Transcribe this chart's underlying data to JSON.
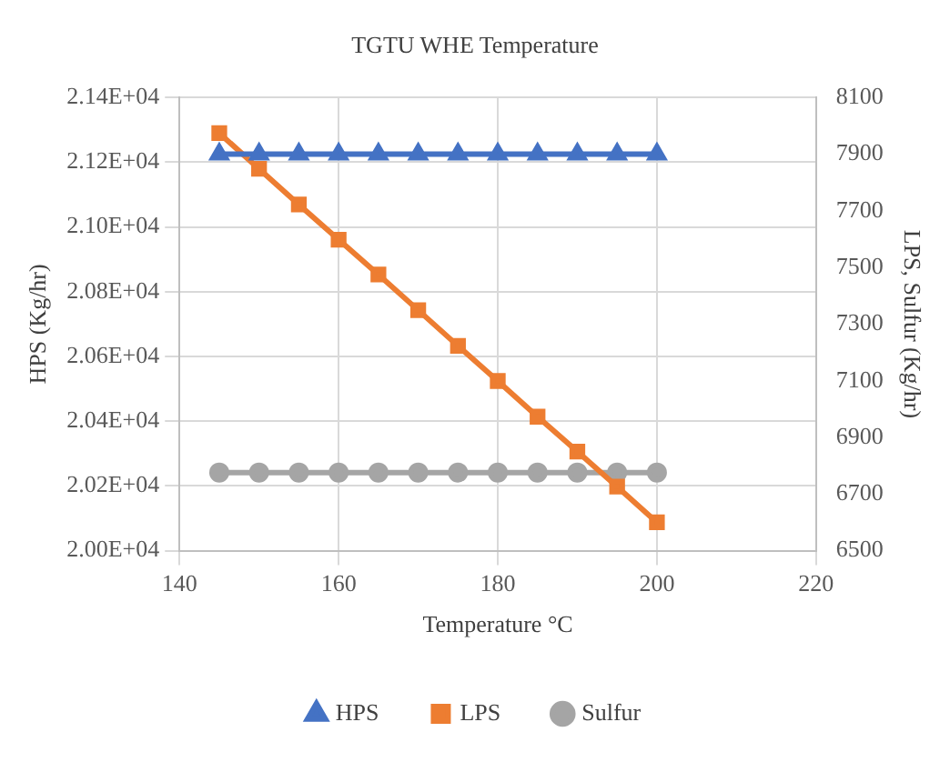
{
  "chart_data": {
    "type": "line",
    "title": "TGTU WHE Temperature",
    "xlabel": "Temperature °C",
    "ylabel": "HPS (Kg/hr)",
    "y2label": "LPS, Sulfur (Kg/hr)",
    "x": [
      145,
      150,
      155,
      160,
      165,
      170,
      175,
      180,
      185,
      190,
      195,
      200
    ],
    "series": [
      {
        "name": "HPS",
        "color": "#4472c4",
        "marker": "triangle",
        "values": [
          21225,
          21225,
          21225,
          21225,
          21225,
          21225,
          21225,
          21225,
          21225,
          21225,
          21225,
          21225
        ]
      },
      {
        "name": "LPS",
        "color": "#ed7d31",
        "marker": "square",
        "axis": "y2",
        "values": [
          7974,
          7848,
          7722,
          7598,
          7475,
          7349,
          7223,
          7099,
          6973,
          6850,
          6726,
          6600
        ]
      },
      {
        "name": "Sulfur",
        "color": "#a5a5a5",
        "marker": "circle",
        "axis": "y2",
        "values": [
          6776,
          6776,
          6776,
          6776,
          6776,
          6776,
          6776,
          6776,
          6776,
          6776,
          6776,
          6776
        ]
      }
    ],
    "xlim": [
      140,
      220
    ],
    "xticks": [
      140,
      160,
      180,
      200,
      220
    ],
    "ylim": [
      20000,
      21400
    ],
    "yticks": [
      {
        "value": 20000,
        "label": "2.00E+04"
      },
      {
        "value": 20200,
        "label": "2.02E+04"
      },
      {
        "value": 20400,
        "label": "2.04E+04"
      },
      {
        "value": 20600,
        "label": "2.06E+04"
      },
      {
        "value": 20800,
        "label": "2.08E+04"
      },
      {
        "value": 21000,
        "label": "2.10E+04"
      },
      {
        "value": 21200,
        "label": "2.12E+04"
      },
      {
        "value": 21400,
        "label": "2.14E+04"
      }
    ],
    "y2lim": [
      6500,
      8100
    ],
    "y2ticks": [
      6500,
      6700,
      6900,
      7100,
      7300,
      7500,
      7700,
      7900,
      8100
    ],
    "grid": true,
    "legend": "bottom",
    "line_style": "solid"
  }
}
